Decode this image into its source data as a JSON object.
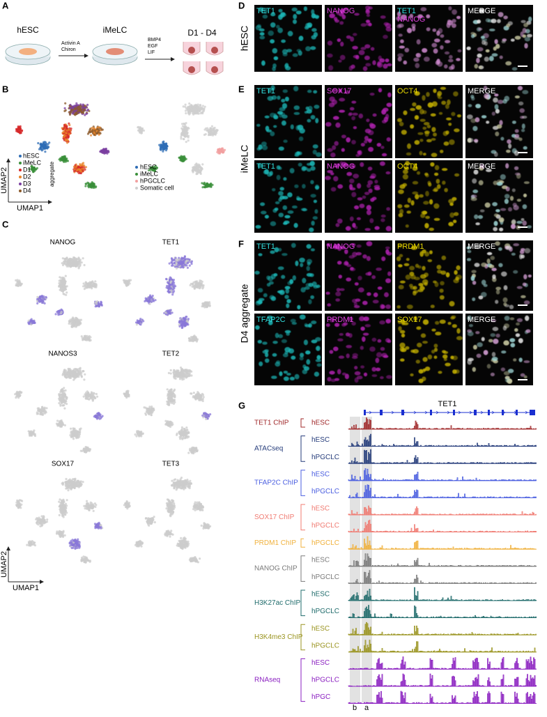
{
  "A": {
    "letter": "A",
    "start": "hESC",
    "step1": {
      "label": "iMeLC",
      "factors": [
        "Activin A",
        "Chiron"
      ]
    },
    "step2": {
      "label": "D1 - D4",
      "factors": [
        "BMP4",
        "EGF",
        "LIF"
      ]
    }
  },
  "B": {
    "letter": "B",
    "legend_left": [
      {
        "label": "hESC",
        "color": "#2f6db5"
      },
      {
        "label": "iMeLC",
        "color": "#3a8f3a"
      },
      {
        "label": "D1",
        "color": "#d62728"
      },
      {
        "label": "D2",
        "color": "#e8842a"
      },
      {
        "label": "D3",
        "color": "#7b3fa0"
      },
      {
        "label": "D4",
        "color": "#8b5a2b"
      }
    ],
    "side_label": "aggregate",
    "axis_y": "UMAP2",
    "axis_x": "UMAP1",
    "legend_right": [
      {
        "label": "hESC",
        "color": "#2f6db5"
      },
      {
        "label": "iMeLC",
        "color": "#3a8f3a"
      },
      {
        "label": "hPGCLC",
        "color": "#f2a0a0"
      },
      {
        "label": "Somatic cell",
        "color": "#cfcfcf"
      }
    ]
  },
  "C": {
    "letter": "C",
    "plots": [
      "NANOG",
      "TET1",
      "NANOS3",
      "TET2",
      "SOX17",
      "TET3"
    ],
    "axis_y": "UMAP2",
    "axis_x": "UMAP1"
  },
  "D": {
    "letter": "D",
    "condition": "hESC",
    "rows": [
      [
        [
          {
            "text": "TET1",
            "color": "#33e0e0"
          }
        ],
        [
          {
            "text": "NANOG",
            "color": "#e040e0"
          }
        ],
        [
          {
            "text": "TET1",
            "color": "#33e0e0"
          },
          {
            "text": "NANOG",
            "color": "#e040e0"
          }
        ],
        [
          {
            "text": "MERGE",
            "color": "#ffffff"
          }
        ]
      ]
    ]
  },
  "E": {
    "letter": "E",
    "condition": "iMeLC",
    "rows": [
      [
        [
          {
            "text": "TET1",
            "color": "#33e0e0"
          }
        ],
        [
          {
            "text": "SOX17",
            "color": "#e040e0"
          }
        ],
        [
          {
            "text": "OCT4",
            "color": "#e8d800"
          }
        ],
        [
          {
            "text": "MERGE",
            "color": "#ffffff"
          }
        ]
      ],
      [
        [
          {
            "text": "TET1",
            "color": "#33e0e0"
          }
        ],
        [
          {
            "text": "NANOG",
            "color": "#e040e0"
          }
        ],
        [
          {
            "text": "OCT4",
            "color": "#e8d800"
          }
        ],
        [
          {
            "text": "MERGE",
            "color": "#ffffff"
          }
        ]
      ]
    ]
  },
  "F": {
    "letter": "F",
    "condition": "D4 aggregate",
    "rows": [
      [
        [
          {
            "text": "TET1",
            "color": "#33e0e0"
          }
        ],
        [
          {
            "text": "NANOG",
            "color": "#e040e0"
          }
        ],
        [
          {
            "text": "PRDM1",
            "color": "#e8d800"
          }
        ],
        [
          {
            "text": "MERGE",
            "color": "#ffffff"
          }
        ]
      ],
      [
        [
          {
            "text": "TFAP2C",
            "color": "#33e0e0"
          }
        ],
        [
          {
            "text": "PRDM1",
            "color": "#e040e0"
          }
        ],
        [
          {
            "text": "SOX17",
            "color": "#e8d800"
          }
        ],
        [
          {
            "text": "MERGE",
            "color": "#ffffff"
          }
        ]
      ]
    ]
  },
  "G": {
    "letter": "G",
    "gene": "TET1",
    "groups": [
      {
        "name": "TET1 ChIP",
        "color": "#a0282a",
        "samples": [
          "hESC"
        ]
      },
      {
        "name": "ATACseq",
        "color": "#243b7a",
        "samples": [
          "hESC",
          "hPGCLC"
        ]
      },
      {
        "name": "TFAP2C ChIP",
        "color": "#4a5ee0",
        "samples": [
          "hESC",
          "hPGCLC"
        ]
      },
      {
        "name": "SOX17 ChIP",
        "color": "#f07b72",
        "samples": [
          "hESC",
          "hPGCLC"
        ]
      },
      {
        "name": "PRDM1 ChIP",
        "color": "#f0b13c",
        "samples": [
          "hPGCLC"
        ]
      },
      {
        "name": "NANOG ChIP",
        "color": "#7a7a7a",
        "samples": [
          "hESC",
          "hPGCLC"
        ]
      },
      {
        "name": "H3K27ac ChIP",
        "color": "#1f6b6b",
        "samples": [
          "hESC",
          "hPGCLC"
        ]
      },
      {
        "name": "H3K4me3 ChIP",
        "color": "#9a9420",
        "samples": [
          "hESC",
          "hPGCLC"
        ]
      },
      {
        "name": "RNAseq",
        "color": "#8a1fc0",
        "samples": [
          "hESC",
          "hPGCLC",
          "hPGC"
        ]
      }
    ],
    "regions": [
      "b",
      "a"
    ]
  }
}
